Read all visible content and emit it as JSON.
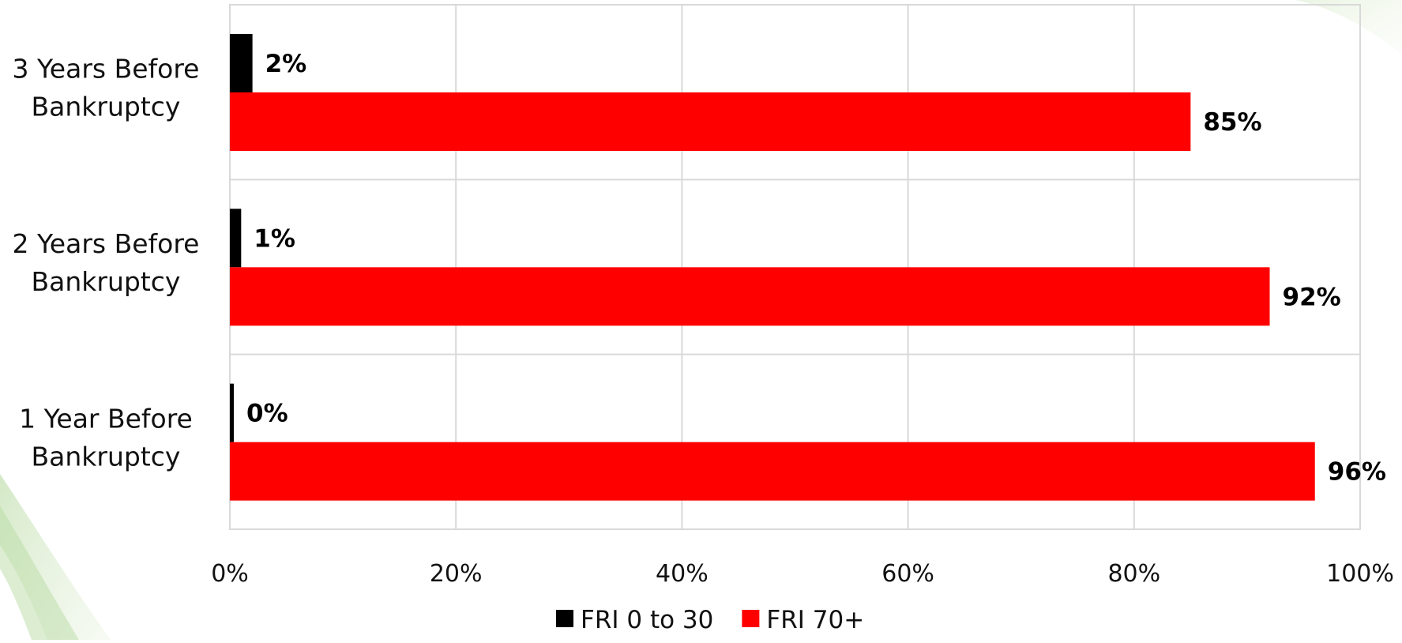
{
  "chart_data": {
    "type": "bar",
    "orientation": "horizontal",
    "categories": [
      "3 Years Before Bankruptcy",
      "2 Years Before Bankruptcy",
      "1 Year Before Bankruptcy"
    ],
    "category_label_lines": [
      [
        "3 Years Before",
        "Bankruptcy"
      ],
      [
        "2 Years Before",
        "Bankruptcy"
      ],
      [
        "1 Year Before",
        "Bankruptcy"
      ]
    ],
    "series": [
      {
        "name": "FRI 0 to 30",
        "color": "#000000",
        "values": [
          2,
          1,
          0
        ],
        "labels": [
          "2%",
          "1%",
          "0%"
        ]
      },
      {
        "name": "FRI 70+",
        "color": "#ff0000",
        "values": [
          85,
          92,
          96
        ],
        "labels": [
          "85%",
          "92%",
          "96%"
        ]
      }
    ],
    "xlim": [
      0,
      100
    ],
    "x_ticks": [
      0,
      20,
      40,
      60,
      80,
      100
    ],
    "x_tick_labels": [
      "0%",
      "20%",
      "40%",
      "60%",
      "80%",
      "100%"
    ],
    "grid": true,
    "grid_color": "#d9d9d9",
    "legend_position": "bottom",
    "title": "",
    "xlabel": "",
    "ylabel": "",
    "decoration_color": "#8bc34a"
  }
}
